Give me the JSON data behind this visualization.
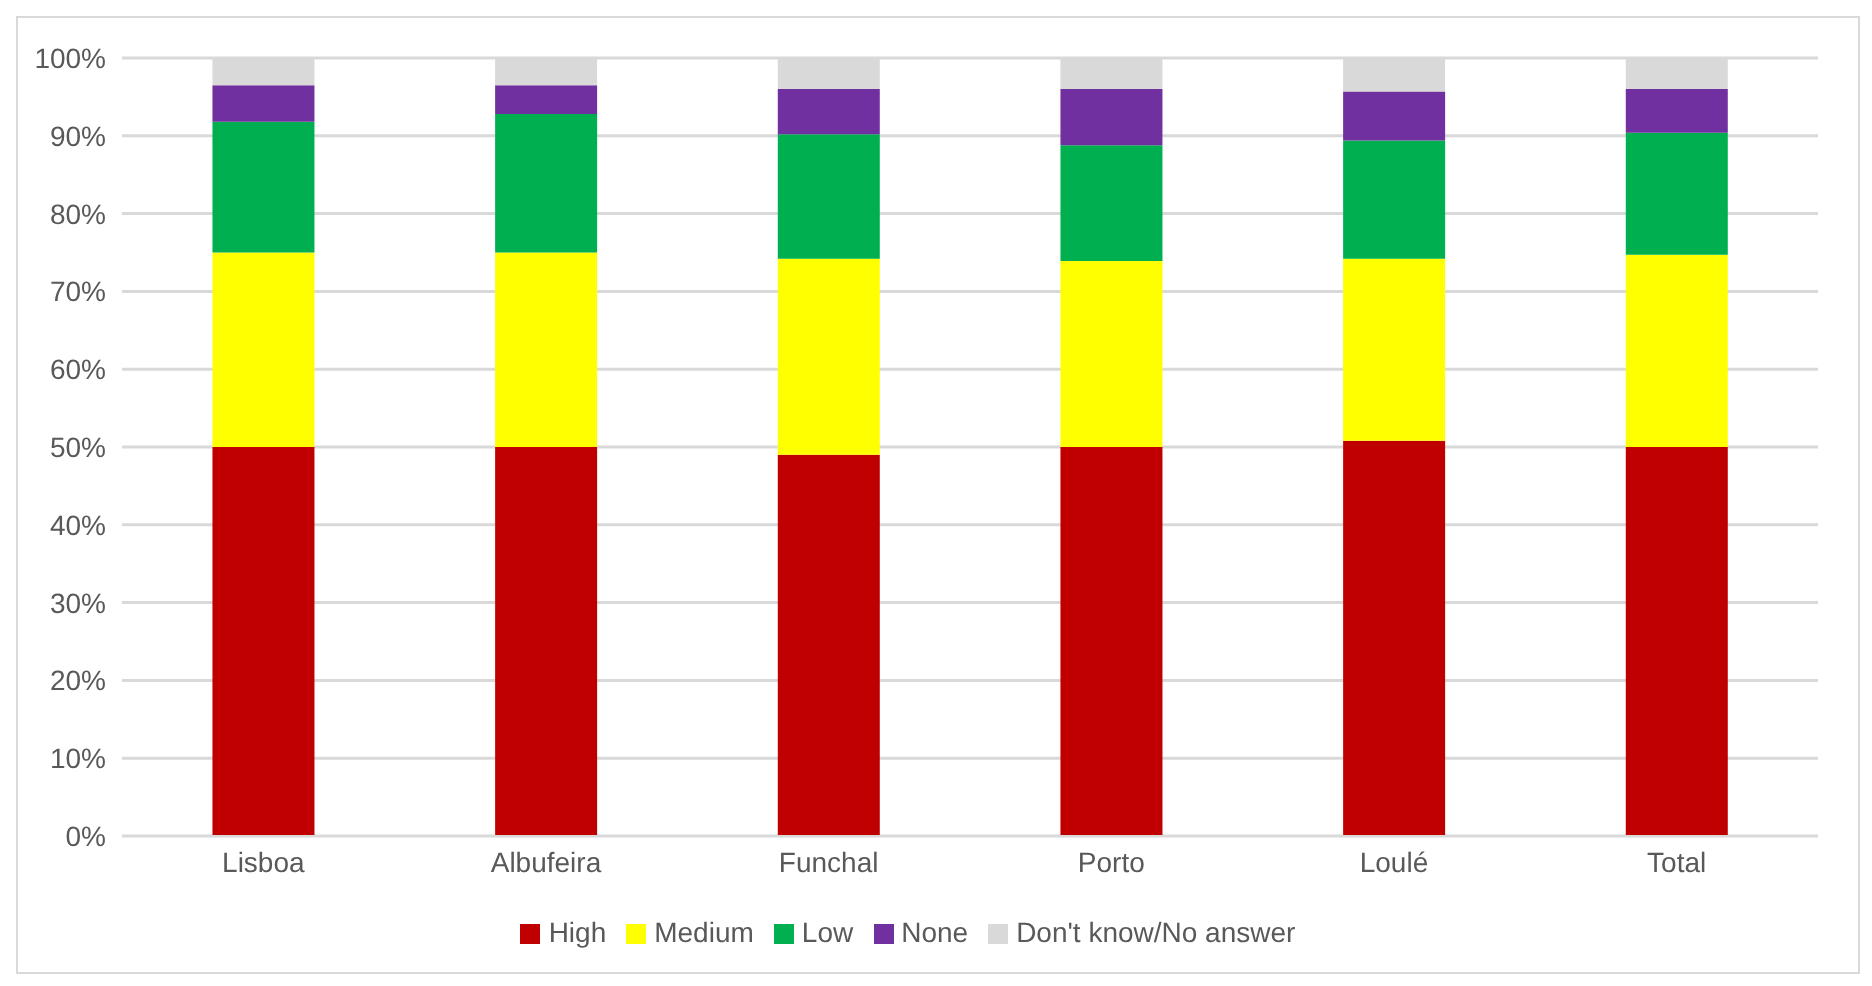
{
  "chart_data": {
    "type": "bar",
    "stacked": true,
    "categories": [
      "Lisboa",
      "Albufeira",
      "Funchal",
      "Porto",
      "Loulé",
      "Total"
    ],
    "series": [
      {
        "name": "High",
        "color": "#c00000",
        "values": [
          50,
          50,
          49,
          50,
          50.8,
          50
        ]
      },
      {
        "name": "Medium",
        "color": "#ffff00",
        "values": [
          25,
          25,
          25.2,
          23.9,
          23.4,
          24.7
        ]
      },
      {
        "name": "Low",
        "color": "#00b050",
        "values": [
          16.8,
          17.8,
          16,
          14.9,
          15.2,
          15.7
        ]
      },
      {
        "name": "None",
        "color": "#7030a0",
        "values": [
          4.7,
          3.7,
          5.8,
          7.2,
          6.3,
          5.6
        ]
      },
      {
        "name": "Don't know/No answer",
        "color": "#d9d9d9",
        "values": [
          3.5,
          3.5,
          4,
          4,
          4.3,
          4
        ]
      }
    ],
    "ylim": [
      0,
      100
    ],
    "yticks": [
      {
        "value": 0,
        "label": "0%"
      },
      {
        "value": 10,
        "label": "10%"
      },
      {
        "value": 20,
        "label": "20%"
      },
      {
        "value": 30,
        "label": "30%"
      },
      {
        "value": 40,
        "label": "40%"
      },
      {
        "value": 50,
        "label": "50%"
      },
      {
        "value": 60,
        "label": "60%"
      },
      {
        "value": 70,
        "label": "70%"
      },
      {
        "value": 80,
        "label": "80%"
      },
      {
        "value": 90,
        "label": "90%"
      },
      {
        "value": 100,
        "label": "100%"
      }
    ],
    "grid": "y",
    "legend": "bottom"
  }
}
